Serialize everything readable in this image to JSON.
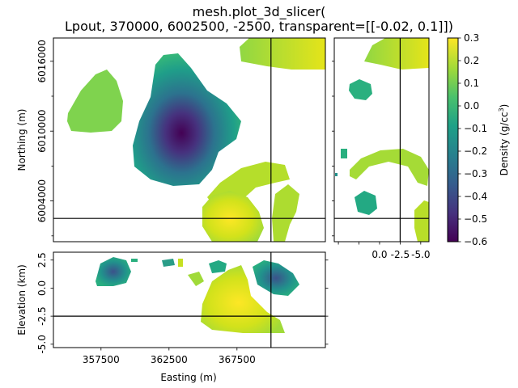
{
  "figure": {
    "title_line1": "mesh.plot_3d_slicer(",
    "title_line2": "Lpout, 370000, 6002500, -2500, transparent=[[-0.02, 0.1]])"
  },
  "chart_data": [
    {
      "type": "heatmap",
      "panel": "plan-view",
      "xlabel": "",
      "ylabel": "Northing (m)",
      "xlim": [
        354000,
        374000
      ],
      "ylim": [
        6000500,
        6018000
      ],
      "yticks": [
        6004000,
        6010000,
        6016000
      ],
      "ytick_labels": [
        "6004000",
        "6010000",
        "6016000"
      ],
      "crosshair": {
        "x": 370000,
        "y": 6002500
      }
    },
    {
      "type": "heatmap",
      "panel": "east-section",
      "xlabel": "",
      "ylabel": "",
      "xlim": [
        5.5,
        -6.0
      ],
      "xticks": [
        0.0,
        -2.5,
        -5.0
      ],
      "xtick_labels": [
        "0.0",
        "-2.5",
        "-5.0"
      ],
      "crosshair": {
        "x": -2.5,
        "y": 6002500
      }
    },
    {
      "type": "heatmap",
      "panel": "north-section",
      "xlabel": "Easting (m)",
      "ylabel": "Elevation (km)",
      "xlim": [
        354000,
        374000
      ],
      "ylim": [
        -5.3,
        3.2
      ],
      "xticks": [
        357500,
        362500,
        367500
      ],
      "xtick_labels": [
        "357500",
        "362500",
        "367500"
      ],
      "yticks": [
        2.5,
        0.0,
        -2.5,
        -5.0
      ],
      "ytick_labels": [
        "2.5",
        "0.0",
        "-2.5",
        "-5.0"
      ],
      "crosshair": {
        "x": 370000,
        "y": -2.5
      }
    },
    {
      "type": "colorbar",
      "label_main": "Density (g/cc",
      "label_sup": "3",
      "label_end": ")",
      "range": [
        -0.6,
        0.3
      ],
      "ticks": [
        0.3,
        0.2,
        0.1,
        0.0,
        -0.1,
        -0.2,
        -0.3,
        -0.4,
        -0.5,
        -0.6
      ],
      "tick_labels": [
        "0.3",
        "0.2",
        "0.1",
        "0.0",
        "−0.1",
        "−0.2",
        "−0.3",
        "−0.4",
        "−0.5",
        "−0.6"
      ],
      "colormap": "viridis"
    }
  ]
}
